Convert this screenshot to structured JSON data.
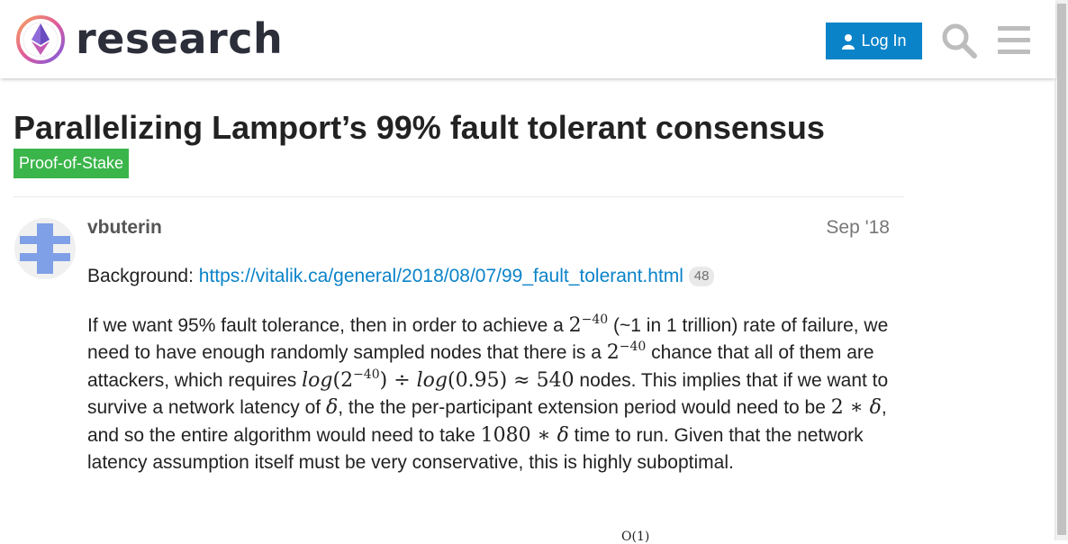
{
  "header": {
    "brand": "research",
    "login_label": "Log In",
    "search_icon": "search-icon",
    "menu_icon": "hamburger-menu-icon",
    "accent_color": "#0a83c9"
  },
  "topic": {
    "title": "Parallelizing Lamport’s 99% fault tolerant consensus",
    "category": "Proof-of-Stake",
    "category_color": "#3ab54a"
  },
  "post": {
    "username": "vbuterin",
    "date": "Sep '18",
    "background_label": "Background:",
    "background_link": "https://vitalik.ca/general/2018/08/07/99_fault_tolerant.html",
    "link_clicks": "48",
    "p2": {
      "t1": "If we want 95% fault tolerance, then in order to achieve a ",
      "m1_base": "2",
      "m1_exp": "−40",
      "t2": " (~1 in 1 trillion) rate of failure, we need to have enough randomly sampled nodes that there is a ",
      "m2_base": "2",
      "m2_exp": "−40",
      "t3": " chance that all of them are attackers, which requires ",
      "m3_log1": "log",
      "m3_open": "(2",
      "m3_exp": "−40",
      "m3_rest": ") ÷ ",
      "m3_log2": "log",
      "m3_tail": "(0.95) ≈ 540",
      "t4": " nodes. This implies that if we want to survive a network latency of ",
      "m4": "δ",
      "t5": ", the the per-participant extension period would need to be ",
      "m5_num": "2 ∗ ",
      "m5_var": "δ",
      "t6": ", and so the entire algorithm would need to take ",
      "m6_num": "1080 ∗ ",
      "m6_var": "δ",
      "t7": " time to run. Given that the network latency assumption itself must be very conservative, this is highly suboptimal."
    },
    "partial_formula": "O(1)"
  }
}
